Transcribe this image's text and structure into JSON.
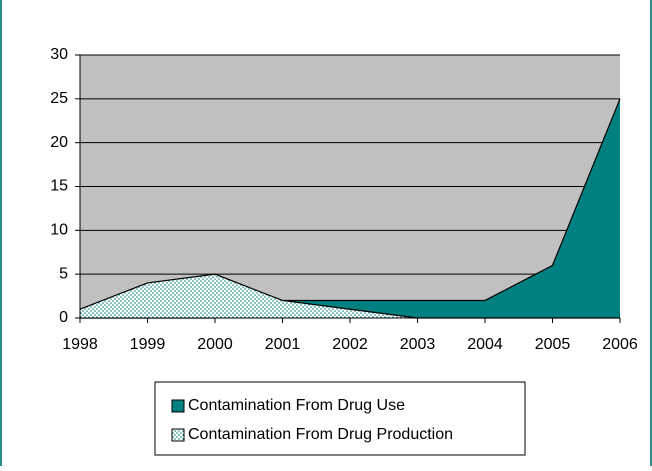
{
  "chart_data": {
    "type": "area",
    "categories": [
      "1998",
      "1999",
      "2000",
      "2001",
      "2002",
      "2003",
      "2004",
      "2005",
      "2006"
    ],
    "series": [
      {
        "name": "Contamination From Drug Use",
        "color": "#008080",
        "values": [
          0,
          0,
          0,
          2,
          2,
          2,
          2,
          6,
          25
        ]
      },
      {
        "name": "Contamination From Drug Production",
        "color": "#008080",
        "pattern": "dotted",
        "values": [
          1,
          4,
          5,
          2,
          1,
          0,
          0,
          0,
          0
        ]
      }
    ],
    "ylim": [
      0,
      30
    ],
    "yticks": [
      0,
      5,
      10,
      15,
      20,
      25,
      30
    ],
    "grid": true,
    "plot_background": "#c0c0c0"
  }
}
